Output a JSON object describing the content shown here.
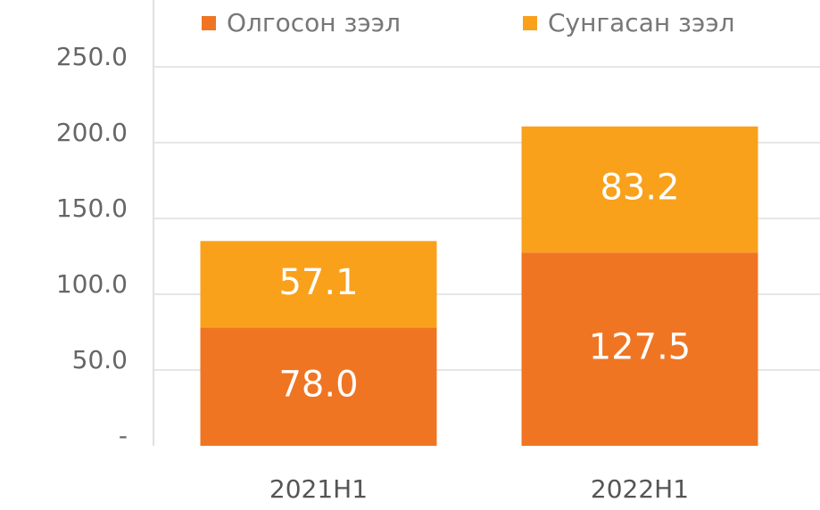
{
  "chart_data": {
    "type": "stacked_bar",
    "categories": [
      "2021H1",
      "2022H1"
    ],
    "series": [
      {
        "name": "Олгосон зээл",
        "color": "#f07522",
        "values": [
          78.0,
          127.5
        ],
        "value_labels": [
          "78.0",
          "127.5"
        ]
      },
      {
        "name": "Сунгасан зээл",
        "color": "#f9a11b",
        "values": [
          57.1,
          83.2
        ],
        "value_labels": [
          "57.1",
          "83.2"
        ]
      }
    ],
    "ylim": [
      0,
      250
    ],
    "yticks": [
      {
        "value": 0,
        "label": "-"
      },
      {
        "value": 50,
        "label": "50.0"
      },
      {
        "value": 100,
        "label": "100.0"
      },
      {
        "value": 150,
        "label": "150.0"
      },
      {
        "value": 200,
        "label": "200.0"
      },
      {
        "value": 250,
        "label": "250.0"
      }
    ],
    "grid": true,
    "legend": "top"
  }
}
